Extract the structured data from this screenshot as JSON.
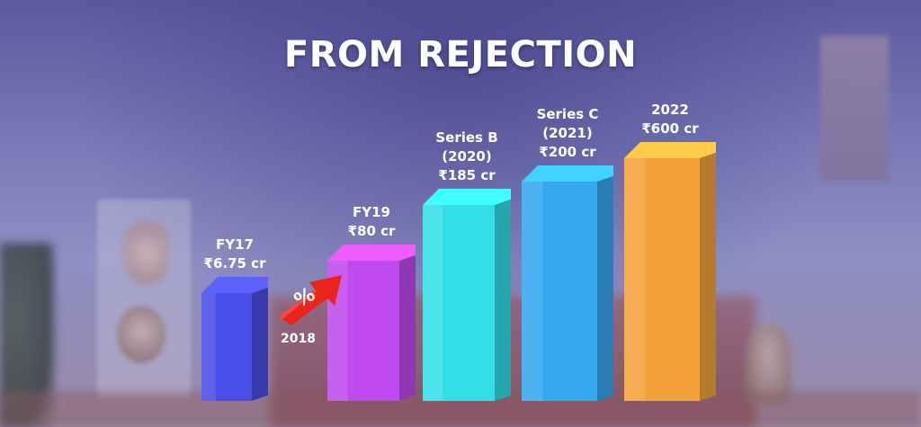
{
  "title": "FROM REJECTION",
  "arrow": {
    "caption": "2018",
    "symbol": "%",
    "icon": "growth-arrow-icon",
    "color": "#e8241c"
  },
  "chart_data": {
    "type": "bar",
    "title": "FROM REJECTION",
    "categories": [
      "FY17",
      "FY19",
      "Series B (2020)",
      "Series C (2021)",
      "2022"
    ],
    "values": [
      6.75,
      80,
      185,
      200,
      600
    ],
    "unit": "₹ cr",
    "labels": [
      [
        "FY17",
        "₹6.75 cr"
      ],
      [
        "FY19",
        "₹80 cr"
      ],
      [
        "Series B",
        "(2020)",
        "₹185 cr"
      ],
      [
        "Series C",
        "(2021)",
        "₹200 cr"
      ],
      [
        "2022",
        "₹600 cr"
      ]
    ],
    "colors": [
      "#4a4ee8",
      "#c04af0",
      "#33dfe6",
      "#35a8f0",
      "#f3a23a"
    ],
    "xlabel": "",
    "ylabel": "",
    "style": "3d-columns",
    "grid": false
  }
}
